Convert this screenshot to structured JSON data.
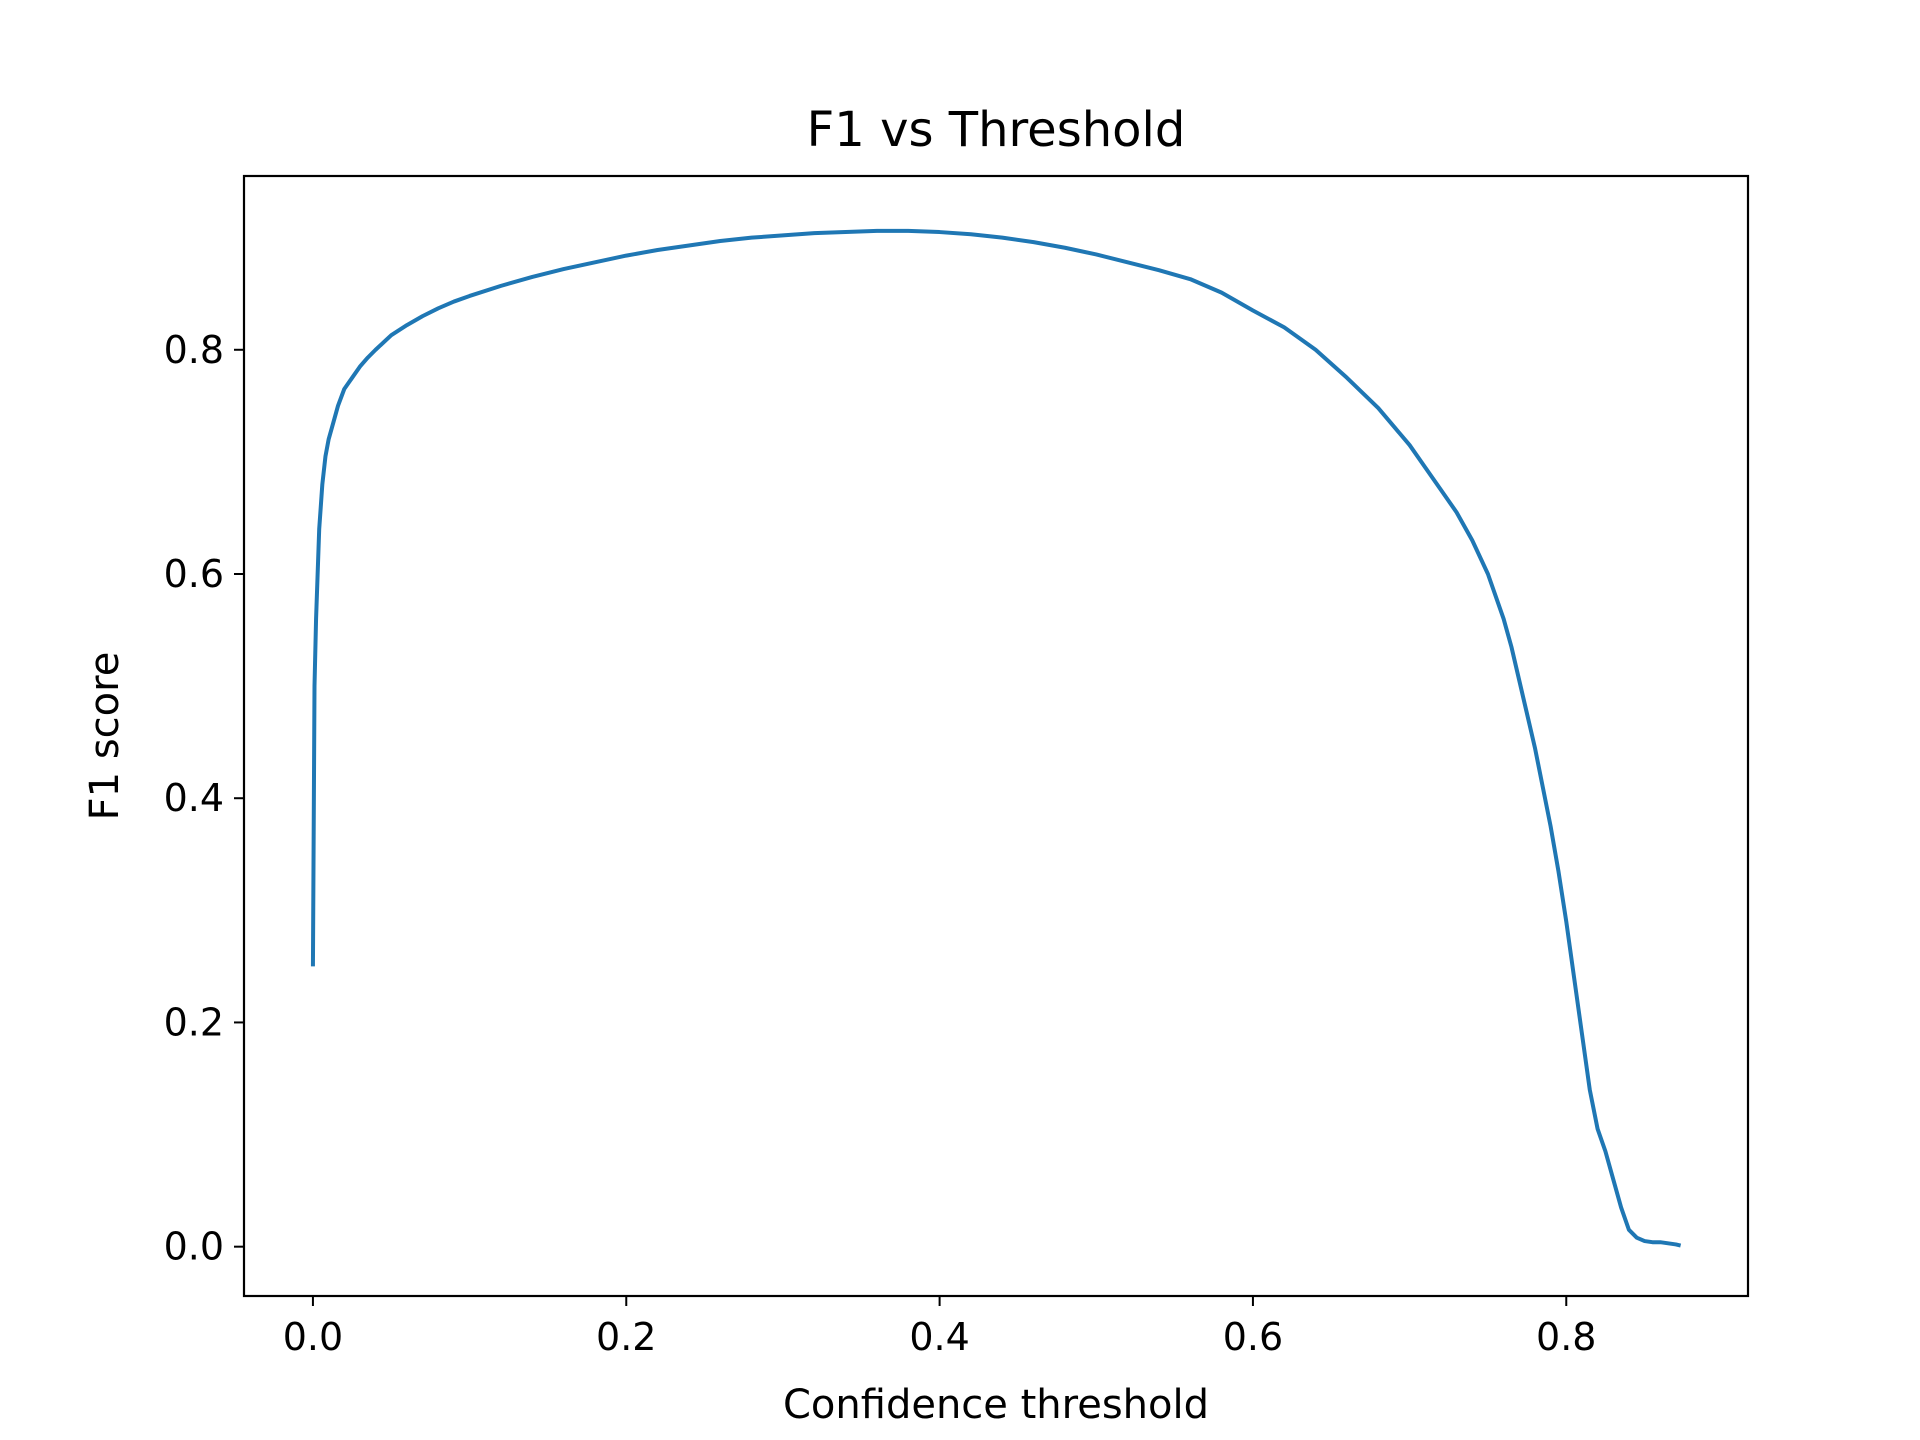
{
  "chart_data": {
    "type": "line",
    "title": "F1 vs Threshold",
    "xlabel": "Confidence threshold",
    "ylabel": "F1 score",
    "xlim": [
      -0.044,
      0.916
    ],
    "ylim": [
      -0.044,
      0.955
    ],
    "grid": false,
    "legend": "none",
    "x_ticks": [
      0.0,
      0.2,
      0.4,
      0.6,
      0.8
    ],
    "x_tick_labels": [
      "0.0",
      "0.2",
      "0.4",
      "0.6",
      "0.8"
    ],
    "y_ticks": [
      0.0,
      0.2,
      0.4,
      0.6,
      0.8
    ],
    "y_tick_labels": [
      "0.0",
      "0.2",
      "0.4",
      "0.6",
      "0.8"
    ],
    "colors": {
      "line": "#1f77b4",
      "axes": "#000000",
      "background": "#ffffff"
    },
    "series": [
      {
        "name": "F1",
        "x": [
          0.0,
          0.001,
          0.002,
          0.003,
          0.004,
          0.005,
          0.006,
          0.008,
          0.01,
          0.013,
          0.016,
          0.02,
          0.025,
          0.03,
          0.035,
          0.04,
          0.05,
          0.06,
          0.07,
          0.08,
          0.09,
          0.1,
          0.12,
          0.14,
          0.16,
          0.18,
          0.2,
          0.22,
          0.24,
          0.26,
          0.28,
          0.3,
          0.32,
          0.34,
          0.36,
          0.38,
          0.4,
          0.42,
          0.44,
          0.46,
          0.48,
          0.5,
          0.52,
          0.54,
          0.56,
          0.58,
          0.6,
          0.62,
          0.64,
          0.66,
          0.68,
          0.7,
          0.71,
          0.72,
          0.73,
          0.74,
          0.75,
          0.76,
          0.765,
          0.77,
          0.775,
          0.78,
          0.785,
          0.79,
          0.795,
          0.8,
          0.805,
          0.81,
          0.815,
          0.82,
          0.825,
          0.83,
          0.835,
          0.84,
          0.845,
          0.85,
          0.855,
          0.86,
          0.865,
          0.87,
          0.873
        ],
        "y": [
          0.25,
          0.5,
          0.56,
          0.6,
          0.64,
          0.66,
          0.68,
          0.705,
          0.72,
          0.735,
          0.75,
          0.765,
          0.775,
          0.785,
          0.793,
          0.8,
          0.813,
          0.822,
          0.83,
          0.837,
          0.843,
          0.848,
          0.857,
          0.865,
          0.872,
          0.878,
          0.884,
          0.889,
          0.893,
          0.897,
          0.9,
          0.902,
          0.904,
          0.905,
          0.906,
          0.906,
          0.905,
          0.903,
          0.9,
          0.896,
          0.891,
          0.885,
          0.878,
          0.871,
          0.863,
          0.851,
          0.835,
          0.82,
          0.8,
          0.775,
          0.748,
          0.715,
          0.695,
          0.675,
          0.655,
          0.63,
          0.6,
          0.56,
          0.535,
          0.505,
          0.475,
          0.445,
          0.41,
          0.375,
          0.335,
          0.29,
          0.24,
          0.19,
          0.14,
          0.105,
          0.085,
          0.06,
          0.035,
          0.015,
          0.008,
          0.005,
          0.004,
          0.004,
          0.003,
          0.002,
          0.001
        ]
      }
    ]
  }
}
